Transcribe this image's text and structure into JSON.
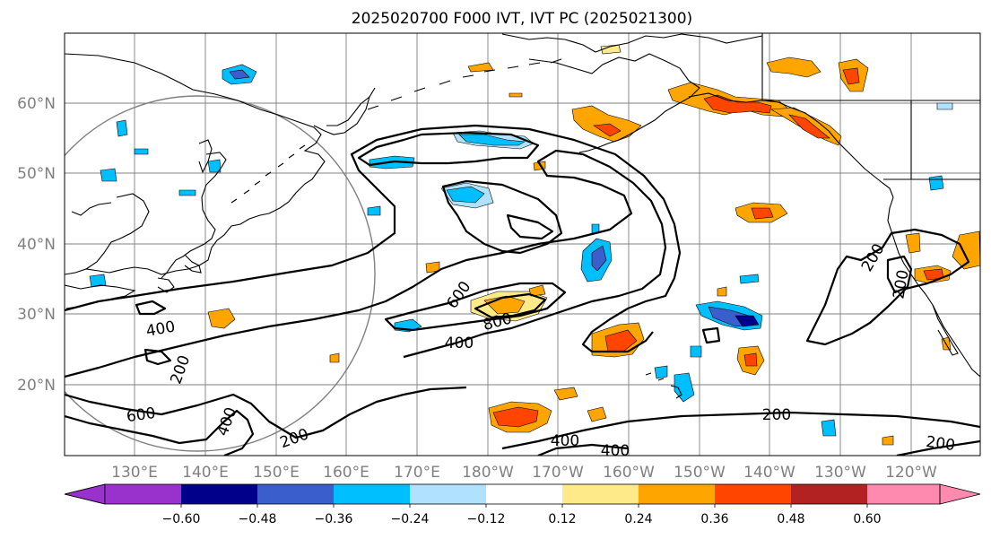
{
  "title": "2025020700 F000 IVT, IVT PC (2025021300)",
  "lat_labels": [
    "60°N",
    "50°N",
    "40°N",
    "30°N",
    "20°N"
  ],
  "lon_labels": [
    "130°E",
    "140°E",
    "150°E",
    "160°E",
    "170°E",
    "180°W",
    "170°W",
    "160°W",
    "150°W",
    "140°W",
    "130°W",
    "120°W"
  ],
  "contour_labels": [
    "200",
    "200",
    "200",
    "200",
    "200",
    "400",
    "400",
    "400",
    "400",
    "400",
    "600",
    "600",
    "800",
    "200"
  ],
  "colorbar": {
    "ticks": [
      "−0.60",
      "−0.48",
      "−0.36",
      "−0.24",
      "−0.12",
      "0.12",
      "0.24",
      "0.36",
      "0.48",
      "0.60"
    ],
    "colors": [
      "#9932cc",
      "#00008b",
      "#3a5fcd",
      "#00bfff",
      "#b0e2ff",
      "#ffffff",
      "#ffea8a",
      "#ffa500",
      "#ff4500",
      "#b22222",
      "#ff8ab0"
    ]
  },
  "fill_colors": {
    "light_blue": "#b0e2ff",
    "blue": "#00bfff",
    "royal_blue": "#3a5fcd",
    "navy": "#00008b",
    "yellow": "#ffea8a",
    "orange": "#ffa500",
    "red": "#ff4500"
  }
}
